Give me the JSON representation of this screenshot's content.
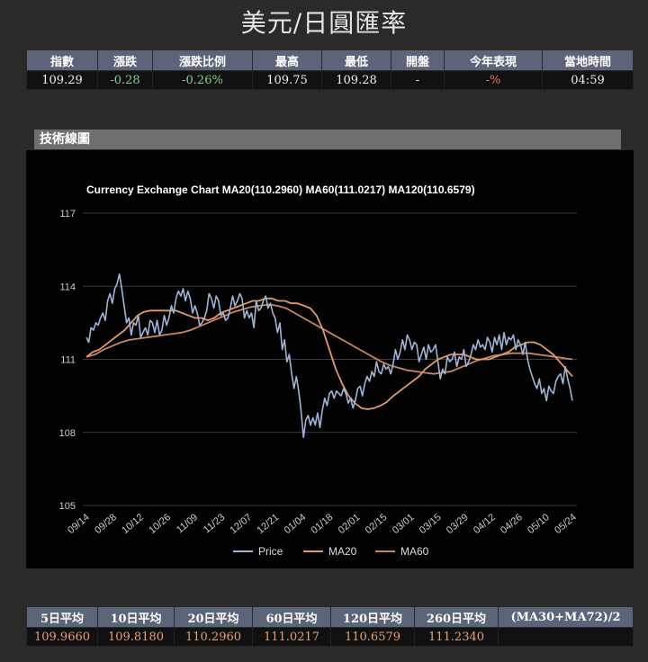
{
  "page_title": "美元/日圓匯率",
  "quote": {
    "headers": [
      "指數",
      "漲跌",
      "漲跌比例",
      "最高",
      "最低",
      "開盤",
      "今年表現",
      "當地時間"
    ],
    "values": [
      "109.29",
      "-0.28",
      "-0.26%",
      "109.75",
      "109.28",
      "-",
      "-%",
      "04:59"
    ]
  },
  "section_title": "技術線圖",
  "chart_data": {
    "type": "line",
    "title": "Currency Exchange Chart MA20(110.2960) MA60(111.0217) MA120(110.6579)",
    "xlabel": "",
    "ylabel": "",
    "ylim": [
      105,
      117
    ],
    "yticks": [
      105,
      108,
      111,
      114,
      117
    ],
    "x_ticks": [
      "09/14",
      "09/28",
      "10/12",
      "10/26",
      "11/09",
      "11/23",
      "12/07",
      "12/21",
      "01/04",
      "01/18",
      "02/01",
      "02/15",
      "03/01",
      "03/15",
      "03/29",
      "04/12",
      "04/26",
      "05/10",
      "05/24"
    ],
    "grid": true,
    "legend_position": "bottom",
    "series": [
      {
        "name": "Price",
        "color": "#9fb4d4",
        "values": [
          111.9,
          111.7,
          112.3,
          112.2,
          112.5,
          112.4,
          112.7,
          112.9,
          112.6,
          113.4,
          113.7,
          113.3,
          113.9,
          114.1,
          114.5,
          113.9,
          113.2,
          112.5,
          112.7,
          112.0,
          112.5,
          112.4,
          112.8,
          111.9,
          112.1,
          112.3,
          112.0,
          112.6,
          112.5,
          112.1,
          112.6,
          112.0,
          112.2,
          112.8,
          112.4,
          112.7,
          113.2,
          112.9,
          113.5,
          113.8,
          113.6,
          113.9,
          113.4,
          113.8,
          113.5,
          112.9,
          113.2,
          112.9,
          112.4,
          112.5,
          112.7,
          113.0,
          113.7,
          113.5,
          113.1,
          113.6,
          113.4,
          112.8,
          112.9,
          112.6,
          112.7,
          113.1,
          113.6,
          113.2,
          113.4,
          113.7,
          113.5,
          112.7,
          113.0,
          112.7,
          112.9,
          112.3,
          113.4,
          113.0,
          113.1,
          113.4,
          113.6,
          113.1,
          113.3,
          112.9,
          112.7,
          112.1,
          112.5,
          111.4,
          111.8,
          110.9,
          111.2,
          110.4,
          109.8,
          110.3,
          109.7,
          108.9,
          107.8,
          108.5,
          108.7,
          108.3,
          108.6,
          108.3,
          108.8,
          108.2,
          108.9,
          109.4,
          109.1,
          109.6,
          109.7,
          109.4,
          109.7,
          109.6,
          109.5,
          109.8,
          109.6,
          109.2,
          109.4,
          109.0,
          109.3,
          109.8,
          109.9,
          109.5,
          110.0,
          110.3,
          110.1,
          110.5,
          110.3,
          110.9,
          110.5,
          110.4,
          110.8,
          110.6,
          110.7,
          110.4,
          110.8,
          111.4,
          111.0,
          111.3,
          111.8,
          111.4,
          112.0,
          111.8,
          111.4,
          111.7,
          111.6,
          110.9,
          111.2,
          111.5,
          111.0,
          111.6,
          111.3,
          111.4,
          111.6,
          110.9,
          110.2,
          110.6,
          110.4,
          111.1,
          110.9,
          111.0,
          111.3,
          110.7,
          111.1,
          111.0,
          111.4,
          110.7,
          110.9,
          111.2,
          111.6,
          111.4,
          111.8,
          111.5,
          111.6,
          111.4,
          111.9,
          111.7,
          111.3,
          111.9,
          111.6,
          112.0,
          111.4,
          112.1,
          111.6,
          111.9,
          111.8,
          112.0,
          111.4,
          111.8,
          111.6,
          111.2,
          111.7,
          111.0,
          110.6,
          110.3,
          110.0,
          109.8,
          110.2,
          109.6,
          109.8,
          109.3,
          109.9,
          109.7,
          109.6,
          110.1,
          110.3,
          110.4,
          110.0,
          110.7,
          110.2,
          109.8,
          109.3
        ]
      },
      {
        "name": "MA20",
        "color": "#e0996c",
        "values": [
          111.1,
          111.3,
          111.4,
          111.6,
          111.8,
          112.0,
          112.2,
          112.5,
          112.8,
          112.95,
          113.0,
          113.0,
          113.0,
          113.0,
          113.0,
          112.9,
          112.8,
          112.7,
          112.7,
          112.6,
          112.7,
          112.9,
          113.0,
          113.1,
          113.2,
          113.3,
          113.4,
          113.4,
          113.5,
          113.5,
          113.4,
          113.4,
          113.3,
          113.3,
          113.2,
          113.1,
          112.8,
          112.2,
          111.4,
          110.6,
          110.0,
          109.5,
          109.2,
          109.0,
          108.95,
          109.0,
          109.1,
          109.25,
          109.5,
          109.7,
          109.9,
          110.1,
          110.3,
          110.6,
          110.8,
          111.0,
          111.1,
          111.2,
          111.2,
          111.2,
          111.1,
          111.0,
          111.0,
          111.0,
          111.1,
          111.2,
          111.3,
          111.5,
          111.6,
          111.7,
          111.7,
          111.6,
          111.4,
          111.2,
          110.9,
          110.6,
          110.3
        ]
      },
      {
        "name": "MA60",
        "color": "#c8865e",
        "values": [
          111.1,
          111.2,
          111.4,
          111.55,
          111.7,
          111.8,
          111.85,
          111.9,
          111.95,
          112.0,
          112.05,
          112.1,
          112.2,
          112.35,
          112.5,
          112.65,
          112.8,
          112.95,
          113.05,
          113.15,
          113.2,
          113.25,
          113.2,
          113.1,
          112.9,
          112.7,
          112.5,
          112.3,
          112.1,
          111.9,
          111.7,
          111.5,
          111.3,
          111.1,
          110.9,
          110.75,
          110.65,
          110.55,
          110.5,
          110.45,
          110.4,
          110.45,
          110.5,
          110.65,
          110.8,
          110.95,
          111.05,
          111.15,
          111.2,
          111.25,
          111.25,
          111.25,
          111.2,
          111.15,
          111.1,
          111.05,
          111.0
        ]
      }
    ]
  },
  "averages": {
    "headers": [
      "5日平均",
      "10日平均",
      "20日平均",
      "60日平均",
      "120日平均",
      "260日平均",
      "(MA30+MA72)/2"
    ],
    "values": [
      "109.9660",
      "109.8180",
      "110.2960",
      "111.0217",
      "110.6579",
      "111.2340",
      ""
    ]
  }
}
